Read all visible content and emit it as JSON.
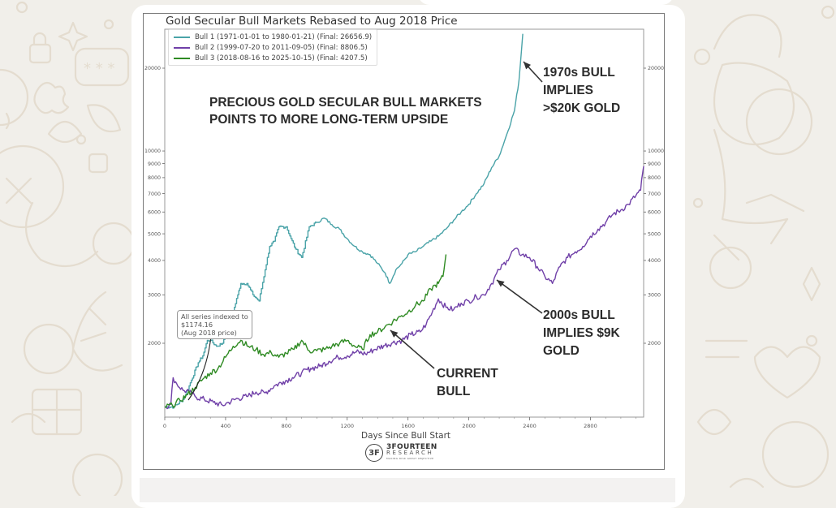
{
  "app": {
    "context": "chat-image-message",
    "wallpaper_color": "#f1efea",
    "bubble_color": "#ffffff"
  },
  "chart_data": {
    "type": "line",
    "title": "Gold Secular Bull Markets Rebased to Aug 2018 Price",
    "xlabel": "Days Since Bull Start",
    "ylabel": "",
    "yscale": "log",
    "xlim": [
      0,
      3150
    ],
    "ylim": [
      1070,
      27000
    ],
    "x_ticks": [
      0,
      400,
      800,
      1200,
      1600,
      2000,
      2400,
      2800
    ],
    "y_ticks": [
      2000,
      3000,
      4000,
      5000,
      6000,
      7000,
      8000,
      9000,
      10000,
      20000
    ],
    "y_ticks_right": [
      2000,
      3000,
      4000,
      5000,
      6000,
      7000,
      8000,
      9000,
      10000,
      20000
    ],
    "grid": false,
    "legend_position": "top-left",
    "series": [
      {
        "name": "Bull 1 (1971-01-01 to 1980-01-21) (Final: 26656.9)",
        "color": "#4aa3a8",
        "step": true,
        "x": [
          0,
          60,
          120,
          160,
          220,
          250,
          280,
          300,
          340,
          380,
          420,
          450,
          480,
          500,
          540,
          580,
          620,
          660,
          690,
          720,
          750,
          800,
          830,
          860,
          900,
          950,
          1000,
          1050,
          1100,
          1150,
          1200,
          1250,
          1300,
          1350,
          1400,
          1450,
          1480,
          1520,
          1560,
          1600,
          1650,
          1700,
          1750,
          1800,
          1850,
          1900,
          1950,
          2000,
          2050,
          2100,
          2150,
          2200,
          2250,
          2300,
          2330,
          2355
        ],
        "y": [
          1174,
          1174,
          1250,
          1400,
          1700,
          1800,
          2050,
          2050,
          1950,
          2000,
          2400,
          2600,
          3000,
          3300,
          3300,
          3000,
          2850,
          3700,
          4500,
          4700,
          5300,
          5300,
          4800,
          4400,
          4100,
          5300,
          5500,
          5700,
          5400,
          5200,
          4800,
          4500,
          4300,
          4200,
          3900,
          3600,
          3300,
          3700,
          3900,
          4200,
          4300,
          4500,
          4700,
          4900,
          5200,
          5600,
          6000,
          6400,
          7000,
          7600,
          8700,
          9600,
          11500,
          14000,
          18000,
          26656.9
        ]
      },
      {
        "name": "Bull 2 (1999-07-20 to 2011-09-05) (Final: 8806.5)",
        "color": "#7040a8",
        "step": false,
        "x": [
          0,
          40,
          55,
          80,
          120,
          160,
          200,
          260,
          320,
          380,
          420,
          480,
          540,
          600,
          660,
          720,
          780,
          840,
          900,
          960,
          1020,
          1080,
          1140,
          1200,
          1260,
          1320,
          1380,
          1440,
          1500,
          1560,
          1620,
          1680,
          1720,
          1760,
          1800,
          1850,
          1900,
          1950,
          2000,
          2050,
          2100,
          2150,
          2200,
          2250,
          2300,
          2350,
          2400,
          2450,
          2500,
          2550,
          2600,
          2650,
          2700,
          2750,
          2800,
          2850,
          2900,
          2950,
          3000,
          3050,
          3100,
          3130,
          3150
        ],
        "y": [
          1174,
          1200,
          1500,
          1420,
          1350,
          1330,
          1280,
          1250,
          1220,
          1190,
          1220,
          1260,
          1280,
          1330,
          1320,
          1400,
          1450,
          1500,
          1560,
          1620,
          1650,
          1720,
          1780,
          1800,
          1860,
          1830,
          1900,
          1960,
          2010,
          2050,
          2150,
          2200,
          2350,
          2600,
          2900,
          2700,
          2650,
          2800,
          2850,
          2950,
          3000,
          3300,
          3700,
          4000,
          4400,
          4200,
          4100,
          3800,
          3500,
          3300,
          3800,
          4100,
          4300,
          4500,
          4900,
          5200,
          5500,
          5900,
          6100,
          6400,
          6900,
          7200,
          8806.5
        ]
      },
      {
        "name": "Bull 3 (2018-08-16 to 2025-10-15) (Final: 4207.5)",
        "color": "#2e8a22",
        "step": false,
        "x": [
          0,
          50,
          100,
          150,
          200,
          250,
          300,
          350,
          400,
          450,
          500,
          550,
          600,
          650,
          700,
          750,
          800,
          850,
          900,
          950,
          1000,
          1050,
          1100,
          1150,
          1200,
          1250,
          1300,
          1350,
          1400,
          1450,
          1500,
          1550,
          1600,
          1650,
          1700,
          1750,
          1780,
          1800,
          1830,
          1850
        ],
        "y": [
          1174,
          1190,
          1240,
          1300,
          1380,
          1480,
          1560,
          1620,
          1780,
          1950,
          2050,
          1950,
          1900,
          1820,
          1850,
          1780,
          1840,
          1900,
          2050,
          1880,
          1880,
          1900,
          1950,
          2000,
          2050,
          1950,
          1900,
          2150,
          2200,
          2300,
          2400,
          2500,
          2600,
          2750,
          2850,
          3150,
          3250,
          3300,
          3500,
          4207.5
        ]
      }
    ],
    "annotations": [
      {
        "text": "PRECIOUS GOLD SECULAR BULL MARKETS\nPOINTS TO MORE LONG-TERM UPSIDE",
        "kind": "headline"
      },
      {
        "text": "1970s BULL\nIMPLIES\n>$20K GOLD",
        "target_series": "Bull 1",
        "target_x": 2355
      },
      {
        "text": "2000s BULL\nIMPLIES $9K\nGOLD",
        "target_series": "Bull 2",
        "target_x": 2180
      },
      {
        "text": "CURRENT\nBULL",
        "target_series": "Bull 3",
        "target_x": 1470
      },
      {
        "text": "All series indexed to\n$1174.16\n(Aug 2018 price)",
        "kind": "note-box",
        "target_x": 40
      }
    ],
    "source_logo": {
      "name": "3FOURTEEN",
      "sub": "RESEARCH",
      "tagline": "MAKING RISK GREAT OBJECTIVE"
    }
  },
  "text": {
    "title": "Gold Secular Bull Markets Rebased to Aug 2018 Price",
    "headline_1": "PRECIOUS GOLD SECULAR BULL MARKETS",
    "headline_2": "POINTS TO MORE LONG-TERM UPSIDE",
    "callout_1970_1": "1970s BULL",
    "callout_1970_2": "IMPLIES",
    "callout_1970_3": ">$20K GOLD",
    "callout_2000_1": "2000s BULL",
    "callout_2000_2": "IMPLIES $9K",
    "callout_2000_3": "GOLD",
    "callout_current_1": "CURRENT",
    "callout_current_2": "BULL",
    "note_1": "All series indexed to",
    "note_2": "$1174.16",
    "note_3": "(Aug 2018 price)",
    "xlabel": "Days Since Bull Start",
    "logo_main": "3FOURTEEN",
    "logo_sub": "RESEARCH",
    "logo_tag": "MAKING RISK GREAT OBJECTIVE",
    "logo_glyph": "3F"
  }
}
